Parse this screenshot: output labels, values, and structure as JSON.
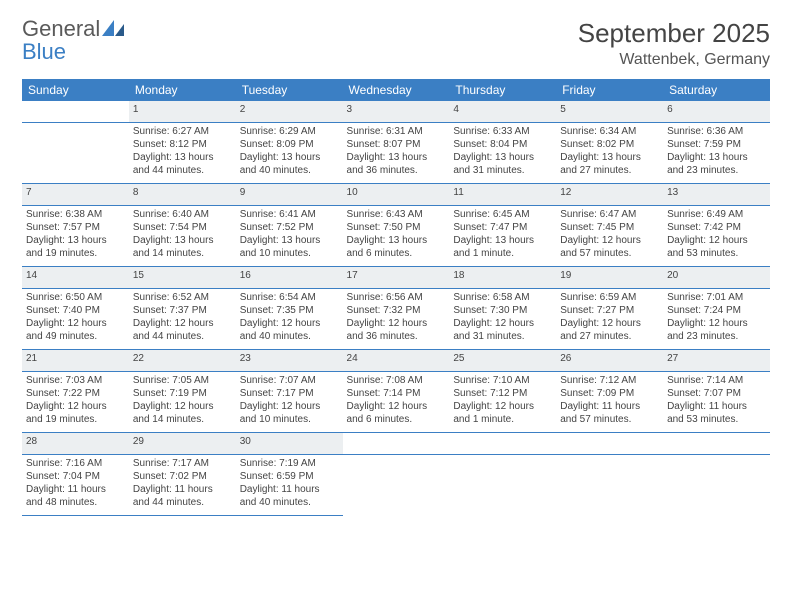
{
  "logo": {
    "word1": "General",
    "word2": "Blue"
  },
  "header": {
    "title": "September 2025",
    "location": "Wattenbek, Germany"
  },
  "colors": {
    "header_bg": "#3b7fc4",
    "header_text": "#ffffff",
    "daynum_bg": "#eceff1",
    "row_border": "#3b7fc4",
    "text": "#444444",
    "background": "#ffffff"
  },
  "days": [
    "Sunday",
    "Monday",
    "Tuesday",
    "Wednesday",
    "Thursday",
    "Friday",
    "Saturday"
  ],
  "weeks": [
    {
      "nums": [
        "",
        "1",
        "2",
        "3",
        "4",
        "5",
        "6"
      ],
      "cells": [
        null,
        {
          "sunrise": "Sunrise: 6:27 AM",
          "sunset": "Sunset: 8:12 PM",
          "daylight1": "Daylight: 13 hours",
          "daylight2": "and 44 minutes."
        },
        {
          "sunrise": "Sunrise: 6:29 AM",
          "sunset": "Sunset: 8:09 PM",
          "daylight1": "Daylight: 13 hours",
          "daylight2": "and 40 minutes."
        },
        {
          "sunrise": "Sunrise: 6:31 AM",
          "sunset": "Sunset: 8:07 PM",
          "daylight1": "Daylight: 13 hours",
          "daylight2": "and 36 minutes."
        },
        {
          "sunrise": "Sunrise: 6:33 AM",
          "sunset": "Sunset: 8:04 PM",
          "daylight1": "Daylight: 13 hours",
          "daylight2": "and 31 minutes."
        },
        {
          "sunrise": "Sunrise: 6:34 AM",
          "sunset": "Sunset: 8:02 PM",
          "daylight1": "Daylight: 13 hours",
          "daylight2": "and 27 minutes."
        },
        {
          "sunrise": "Sunrise: 6:36 AM",
          "sunset": "Sunset: 7:59 PM",
          "daylight1": "Daylight: 13 hours",
          "daylight2": "and 23 minutes."
        }
      ]
    },
    {
      "nums": [
        "7",
        "8",
        "9",
        "10",
        "11",
        "12",
        "13"
      ],
      "cells": [
        {
          "sunrise": "Sunrise: 6:38 AM",
          "sunset": "Sunset: 7:57 PM",
          "daylight1": "Daylight: 13 hours",
          "daylight2": "and 19 minutes."
        },
        {
          "sunrise": "Sunrise: 6:40 AM",
          "sunset": "Sunset: 7:54 PM",
          "daylight1": "Daylight: 13 hours",
          "daylight2": "and 14 minutes."
        },
        {
          "sunrise": "Sunrise: 6:41 AM",
          "sunset": "Sunset: 7:52 PM",
          "daylight1": "Daylight: 13 hours",
          "daylight2": "and 10 minutes."
        },
        {
          "sunrise": "Sunrise: 6:43 AM",
          "sunset": "Sunset: 7:50 PM",
          "daylight1": "Daylight: 13 hours",
          "daylight2": "and 6 minutes."
        },
        {
          "sunrise": "Sunrise: 6:45 AM",
          "sunset": "Sunset: 7:47 PM",
          "daylight1": "Daylight: 13 hours",
          "daylight2": "and 1 minute."
        },
        {
          "sunrise": "Sunrise: 6:47 AM",
          "sunset": "Sunset: 7:45 PM",
          "daylight1": "Daylight: 12 hours",
          "daylight2": "and 57 minutes."
        },
        {
          "sunrise": "Sunrise: 6:49 AM",
          "sunset": "Sunset: 7:42 PM",
          "daylight1": "Daylight: 12 hours",
          "daylight2": "and 53 minutes."
        }
      ]
    },
    {
      "nums": [
        "14",
        "15",
        "16",
        "17",
        "18",
        "19",
        "20"
      ],
      "cells": [
        {
          "sunrise": "Sunrise: 6:50 AM",
          "sunset": "Sunset: 7:40 PM",
          "daylight1": "Daylight: 12 hours",
          "daylight2": "and 49 minutes."
        },
        {
          "sunrise": "Sunrise: 6:52 AM",
          "sunset": "Sunset: 7:37 PM",
          "daylight1": "Daylight: 12 hours",
          "daylight2": "and 44 minutes."
        },
        {
          "sunrise": "Sunrise: 6:54 AM",
          "sunset": "Sunset: 7:35 PM",
          "daylight1": "Daylight: 12 hours",
          "daylight2": "and 40 minutes."
        },
        {
          "sunrise": "Sunrise: 6:56 AM",
          "sunset": "Sunset: 7:32 PM",
          "daylight1": "Daylight: 12 hours",
          "daylight2": "and 36 minutes."
        },
        {
          "sunrise": "Sunrise: 6:58 AM",
          "sunset": "Sunset: 7:30 PM",
          "daylight1": "Daylight: 12 hours",
          "daylight2": "and 31 minutes."
        },
        {
          "sunrise": "Sunrise: 6:59 AM",
          "sunset": "Sunset: 7:27 PM",
          "daylight1": "Daylight: 12 hours",
          "daylight2": "and 27 minutes."
        },
        {
          "sunrise": "Sunrise: 7:01 AM",
          "sunset": "Sunset: 7:24 PM",
          "daylight1": "Daylight: 12 hours",
          "daylight2": "and 23 minutes."
        }
      ]
    },
    {
      "nums": [
        "21",
        "22",
        "23",
        "24",
        "25",
        "26",
        "27"
      ],
      "cells": [
        {
          "sunrise": "Sunrise: 7:03 AM",
          "sunset": "Sunset: 7:22 PM",
          "daylight1": "Daylight: 12 hours",
          "daylight2": "and 19 minutes."
        },
        {
          "sunrise": "Sunrise: 7:05 AM",
          "sunset": "Sunset: 7:19 PM",
          "daylight1": "Daylight: 12 hours",
          "daylight2": "and 14 minutes."
        },
        {
          "sunrise": "Sunrise: 7:07 AM",
          "sunset": "Sunset: 7:17 PM",
          "daylight1": "Daylight: 12 hours",
          "daylight2": "and 10 minutes."
        },
        {
          "sunrise": "Sunrise: 7:08 AM",
          "sunset": "Sunset: 7:14 PM",
          "daylight1": "Daylight: 12 hours",
          "daylight2": "and 6 minutes."
        },
        {
          "sunrise": "Sunrise: 7:10 AM",
          "sunset": "Sunset: 7:12 PM",
          "daylight1": "Daylight: 12 hours",
          "daylight2": "and 1 minute."
        },
        {
          "sunrise": "Sunrise: 7:12 AM",
          "sunset": "Sunset: 7:09 PM",
          "daylight1": "Daylight: 11 hours",
          "daylight2": "and 57 minutes."
        },
        {
          "sunrise": "Sunrise: 7:14 AM",
          "sunset": "Sunset: 7:07 PM",
          "daylight1": "Daylight: 11 hours",
          "daylight2": "and 53 minutes."
        }
      ]
    },
    {
      "nums": [
        "28",
        "29",
        "30",
        "",
        "",
        "",
        ""
      ],
      "cells": [
        {
          "sunrise": "Sunrise: 7:16 AM",
          "sunset": "Sunset: 7:04 PM",
          "daylight1": "Daylight: 11 hours",
          "daylight2": "and 48 minutes."
        },
        {
          "sunrise": "Sunrise: 7:17 AM",
          "sunset": "Sunset: 7:02 PM",
          "daylight1": "Daylight: 11 hours",
          "daylight2": "and 44 minutes."
        },
        {
          "sunrise": "Sunrise: 7:19 AM",
          "sunset": "Sunset: 6:59 PM",
          "daylight1": "Daylight: 11 hours",
          "daylight2": "and 40 minutes."
        },
        null,
        null,
        null,
        null
      ]
    }
  ]
}
